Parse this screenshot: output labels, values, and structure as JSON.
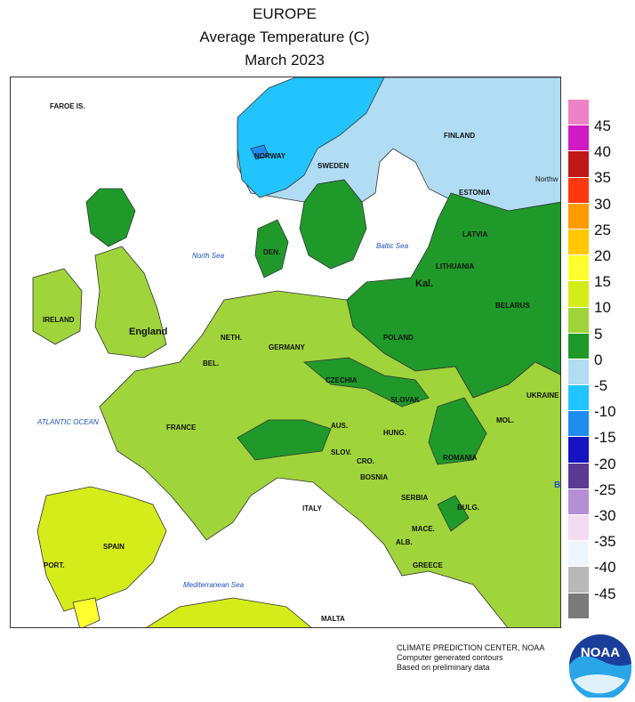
{
  "header": {
    "line1": "EUROPE",
    "line2": "Average Temperature (C)",
    "line3": "March 2023"
  },
  "map": {
    "region": "Europe",
    "variable": "Average Temperature",
    "units": "C",
    "period": "March 2023",
    "labels": {
      "faroe": "FAROE IS.",
      "norway": "NORWAY",
      "sweden": "SWEDEN",
      "finland": "FINLAND",
      "northwest_district": "Northw Distri",
      "estonia": "ESTONIA",
      "latvia": "LATVIA",
      "lithuania": "LITHUANIA",
      "kal": "Kal.",
      "belarus": "BELARUS",
      "den": "DEN.",
      "ireland": "IRELAND",
      "england": "England",
      "neth": "NETH.",
      "bel": "BEL.",
      "germany": "GERMANY",
      "poland": "POLAND",
      "czechia": "CZECHIA",
      "ukraine": "UKRAINE",
      "slovak": "SLOVAK",
      "france": "FRANCE",
      "aus": "AUS.",
      "mol": "MOL.",
      "hung": "HUNG.",
      "romania": "ROMANIA",
      "slov": "SLOV.",
      "cro": "CRO.",
      "bosnia": "BOSNIA",
      "serbia": "SERBIA",
      "bulg": "BULG.",
      "italy": "ITALY",
      "mace": "MACE.",
      "alb": "ALB.",
      "greece": "GREECE",
      "spain": "SPAIN",
      "port": "PORT.",
      "malta": "MALTA",
      "edge_b": "B"
    },
    "seas": {
      "north_sea": "North Sea",
      "baltic_sea": "Baltic Sea",
      "atlantic": "ATLANTIC OCEAN",
      "mediterranean": "Mediterranean Sea"
    }
  },
  "legend": {
    "ticks": [
      "45",
      "40",
      "35",
      "30",
      "25",
      "20",
      "15",
      "10",
      "5",
      "0",
      "-5",
      "-10",
      "-15",
      "-20",
      "-25",
      "-30",
      "-35",
      "-40",
      "-45"
    ],
    "colors": [
      "#ee82c8",
      "#d11ac4",
      "#c01818",
      "#ff3810",
      "#ff9a00",
      "#ffc800",
      "#ffff30",
      "#d4ec1a",
      "#9fd43a",
      "#1f9a2a",
      "#b0dcf4",
      "#21c4ff",
      "#1f8cf0",
      "#1414c0",
      "#5a3a94",
      "#b48fd8",
      "#f4dcf0",
      "#eef6fc",
      "#b8b8b8",
      "#7a7a7a"
    ]
  },
  "credit": {
    "line1": "CLIMATE PREDICTION CENTER, NOAA",
    "line2": "Computer generated contours",
    "line3": "Based on preliminary data"
  },
  "logo": {
    "text": "NOAA"
  }
}
